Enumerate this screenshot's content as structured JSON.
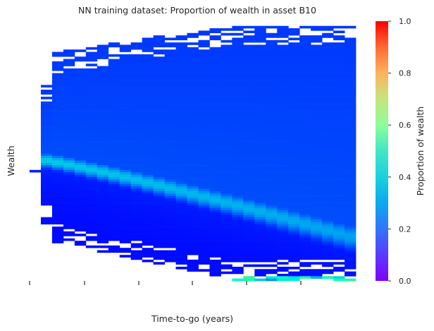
{
  "chart_data": {
    "type": "heatmap",
    "title": "NN training dataset: Proportion of wealth in asset B10",
    "xlabel": "Time-to-go (years)",
    "ylabel": "Wealth",
    "x_tick_labels": [],
    "y_tick_labels": [],
    "colorbar": {
      "label": "Proportion of wealth",
      "colormap": "rainbow",
      "range": [
        0.0,
        1.0
      ],
      "ticks": [
        "0.0",
        "0.2",
        "0.4",
        "0.6",
        "0.8",
        "1.0"
      ]
    },
    "columns": 29,
    "rows": 110,
    "description_of_values": {
      "band_center_start": 0.47,
      "band_center_end": 0.17,
      "band_peak_proportion_start": 0.3,
      "band_peak_proportion_end": 0.22,
      "background_upper_proportion": 0.1,
      "background_lower_proportion": 0.01,
      "bottom_edge_max_proportion": 0.65
    }
  },
  "colors": {
    "background": "#ffffff",
    "text": "#262626",
    "empty_cell": "#ffffff"
  }
}
